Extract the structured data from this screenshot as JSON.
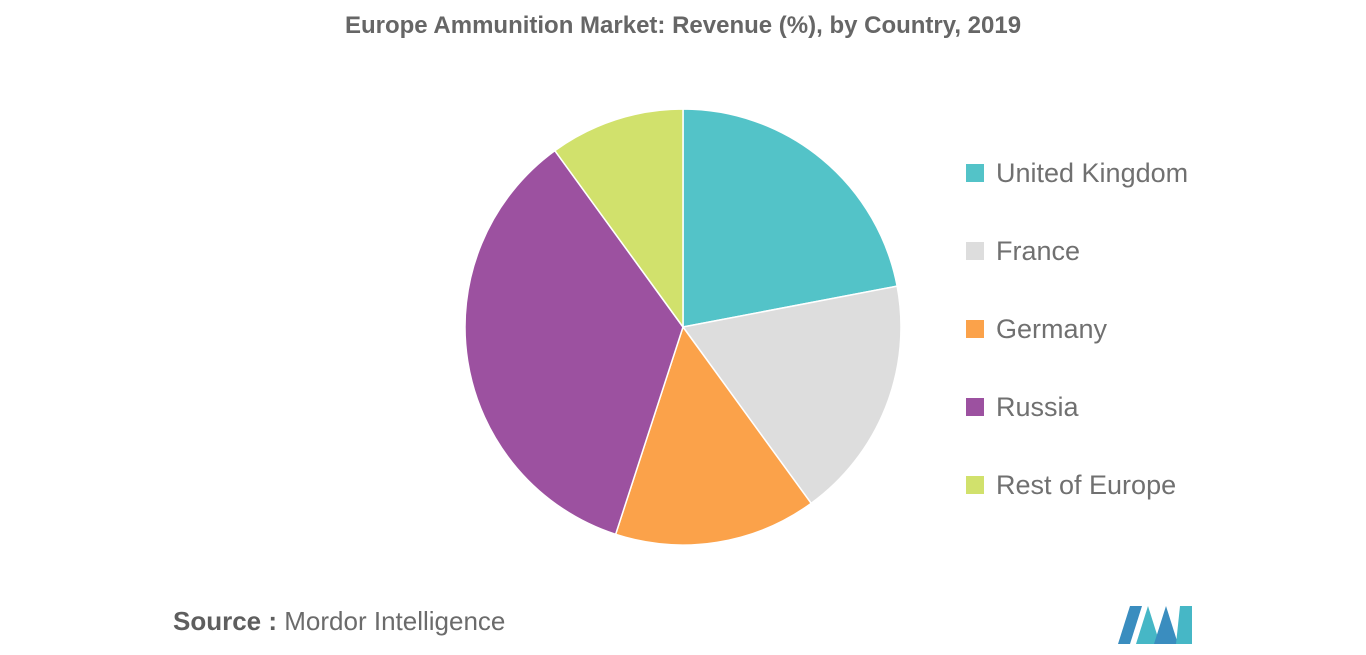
{
  "chart_data": {
    "type": "pie",
    "title": "Europe Ammunition Market: Revenue (%), by Country, 2019",
    "categories": [
      "United Kingdom",
      "France",
      "Germany",
      "Russia",
      "Rest of Europe"
    ],
    "values": [
      22,
      18,
      15,
      35,
      10
    ],
    "colors": [
      "#53C3C8",
      "#DDDDDD",
      "#FBA24A",
      "#9C51A0",
      "#D1E16C"
    ],
    "legend_position": "right",
    "start_angle_deg": 0,
    "direction": "clockwise"
  },
  "source": {
    "label": "Source :",
    "text": "Mordor Intelligence"
  },
  "logo": {
    "name": "mordor-intelligence-logo",
    "colors": [
      "#3A8DBF",
      "#46B7C6"
    ]
  }
}
